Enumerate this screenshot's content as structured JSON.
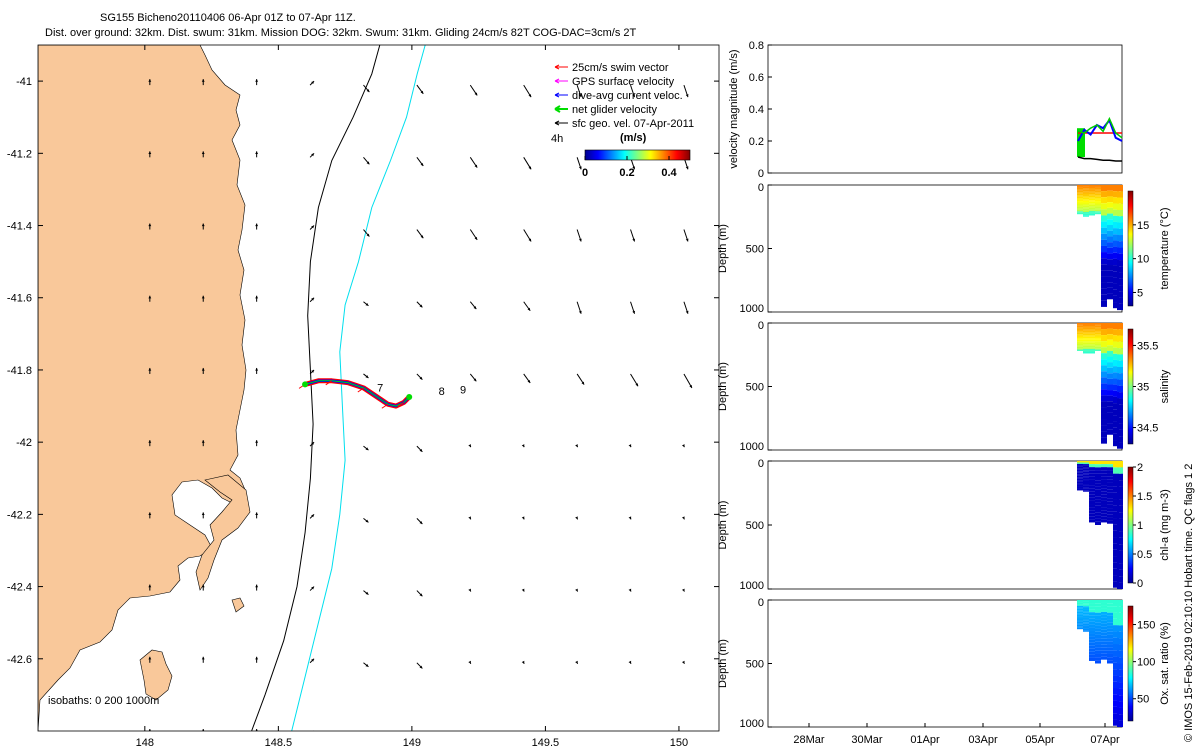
{
  "header": {
    "title": "SG155 Bicheno20110406 06-Apr 01Z to 07-Apr 11Z.",
    "subtitle": "Dist. over ground: 32km. Dist. swum: 31km. Mission DOG: 32km. Swum: 31km. Gliding 24cm/s 82T COG-DAC=3cm/s 2T"
  },
  "credit": "© IMOS 15-Feb-2019 02:10:10 Hobart time. QC flags 1  2",
  "colors": {
    "land": "#f9c89a",
    "cyan": "#00e5ee",
    "track_red": "#ff0000",
    "track_blue": "#0000ff",
    "track_green": "#00ee00",
    "magenta": "#ff00ff"
  },
  "chart_data": [
    {
      "type": "map",
      "xlim": [
        147.6,
        150.15
      ],
      "ylim": [
        -42.8,
        -40.9
      ],
      "x_ticks": [
        "148",
        "148.5",
        "149",
        "149.5",
        "150"
      ],
      "x_tick_values": [
        148,
        148.5,
        149,
        149.5,
        150
      ],
      "y_ticks": [
        "-41",
        "-41.2",
        "-41.4",
        "-41.6",
        "-41.8",
        "-42",
        "-42.2",
        "-42.4",
        "-42.6"
      ],
      "y_tick_values": [
        -41,
        -41.2,
        -41.4,
        -41.6,
        -41.8,
        -42,
        -42.2,
        -42.4,
        -42.6
      ],
      "legend": {
        "position": "top-right",
        "entries": [
          {
            "label": "25cm/s swim vector",
            "color": "#ff0000"
          },
          {
            "label": "GPS surface velocity",
            "color": "#ff00ff"
          },
          {
            "label": "dive-avg current veloc.",
            "color": "#0000ff"
          },
          {
            "label": "net glider velocity",
            "color": "#00dd00"
          },
          {
            "label": "sfc geo. vel. 07-Apr-2011",
            "color": "#000000"
          }
        ]
      },
      "colorbar": {
        "title": "(m/s)",
        "ticks": [
          "0",
          "0.2",
          "0.4"
        ],
        "tick_values": [
          0,
          0.2,
          0.4
        ],
        "range": [
          0,
          0.5
        ]
      },
      "marker_4h": "4h",
      "day_labels": [
        {
          "text": "7",
          "lon": 148.87,
          "lat": -41.86
        },
        {
          "text": "8",
          "lon": 149.1,
          "lat": -41.87
        },
        {
          "text": "9",
          "lon": 149.18,
          "lat": -41.865
        }
      ],
      "isobath_label": "isobaths: 0   200  1000m",
      "track": {
        "lon": [
          148.6,
          148.65,
          148.7,
          148.76,
          148.82,
          148.87,
          148.91,
          148.94,
          148.97,
          148.99
        ],
        "lat": [
          -41.84,
          -41.83,
          -41.83,
          -41.835,
          -41.85,
          -41.875,
          -41.895,
          -41.9,
          -41.89,
          -41.875
        ]
      },
      "isobath_200": {
        "lon": [
          148.88,
          148.85,
          148.78,
          148.7,
          148.65,
          148.62,
          148.61,
          148.62,
          148.63,
          148.62,
          148.6,
          148.57,
          148.52,
          148.45,
          148.4
        ],
        "lat": [
          -40.9,
          -40.98,
          -41.1,
          -41.22,
          -41.35,
          -41.5,
          -41.65,
          -41.8,
          -41.95,
          -42.1,
          -42.25,
          -42.4,
          -42.55,
          -42.7,
          -42.8
        ]
      },
      "isobath_1000": {
        "lon": [
          149.05,
          149.02,
          148.98,
          148.92,
          148.85,
          148.8,
          148.75,
          148.73,
          148.74,
          148.75,
          148.73,
          148.7,
          148.65,
          148.6,
          148.55
        ],
        "lat": [
          -40.9,
          -40.98,
          -41.1,
          -41.22,
          -41.35,
          -41.5,
          -41.62,
          -41.75,
          -41.9,
          -42.05,
          -42.2,
          -42.35,
          -42.5,
          -42.65,
          -42.8
        ]
      }
    },
    {
      "type": "line",
      "ylabel": "velocity magnitude (m/s)",
      "ylim": [
        0,
        0.8
      ],
      "y_ticks": [
        "0",
        "0.2",
        "0.4",
        "0.6",
        "0.8"
      ],
      "y_tick_values": [
        0,
        0.2,
        0.4,
        0.6,
        0.8
      ],
      "series": [
        {
          "color": "#ff0000",
          "values": [
            0.25,
            0.25,
            0.25,
            0.25,
            0.25,
            0.25,
            0.25,
            0.25
          ]
        },
        {
          "color": "#0000ff",
          "values": [
            0.2,
            0.27,
            0.24,
            0.3,
            0.28,
            0.33,
            0.22,
            0.2
          ]
        },
        {
          "color": "#00cc00",
          "values": [
            0.26,
            0.25,
            0.28,
            0.3,
            0.26,
            0.34,
            0.25,
            0.22
          ]
        },
        {
          "color": "#000000",
          "values": [
            0.1,
            0.09,
            0.09,
            0.085,
            0.08,
            0.08,
            0.075,
            0.075
          ]
        }
      ]
    },
    {
      "type": "heatmap",
      "ylabel": "Depth (m)",
      "y_ticks": [
        "0",
        "500",
        "1000"
      ],
      "y_tick_values": [
        0,
        500,
        1000
      ],
      "colorbar_label": "temperature (°C)",
      "colorbar_ticks": [
        "5",
        "10",
        "15"
      ],
      "colorbar_tick_values": [
        5,
        10,
        15
      ],
      "colorbar_range": [
        3,
        20
      ],
      "profile_depths": [
        230,
        250,
        240,
        230,
        960,
        900,
        970,
        985
      ]
    },
    {
      "type": "heatmap",
      "ylabel": "Depth (m)",
      "y_ticks": [
        "0",
        "500",
        "1000"
      ],
      "y_tick_values": [
        0,
        500,
        1000
      ],
      "colorbar_label": "salinity",
      "colorbar_ticks": [
        "34.5",
        "35",
        "35.5"
      ],
      "colorbar_tick_values": [
        34.5,
        35,
        35.5
      ],
      "colorbar_range": [
        34.3,
        35.7
      ],
      "profile_depths": [
        220,
        240,
        240,
        220,
        950,
        880,
        970,
        990
      ]
    },
    {
      "type": "heatmap",
      "ylabel": "Depth (m)",
      "y_ticks": [
        "0",
        "500",
        "1000"
      ],
      "y_tick_values": [
        0,
        500,
        1000
      ],
      "colorbar_label": "chl-a (mg m-3)",
      "colorbar_ticks": [
        "0",
        "0.5",
        "1",
        "1.5",
        "2"
      ],
      "colorbar_tick_values": [
        0,
        0.5,
        1,
        1.5,
        2
      ],
      "colorbar_range": [
        0,
        2
      ],
      "profile_depths": [
        230,
        240,
        480,
        500,
        480,
        490,
        990,
        1000
      ]
    },
    {
      "type": "heatmap",
      "ylabel": "Depth (m)",
      "y_ticks": [
        "0",
        "500",
        "1000"
      ],
      "y_tick_values": [
        0,
        500,
        1000
      ],
      "colorbar_label": "Ox. sat. ratio (%)",
      "colorbar_ticks": [
        "50",
        "100",
        "150"
      ],
      "colorbar_tick_values": [
        50,
        100,
        150
      ],
      "colorbar_range": [
        20,
        175
      ],
      "profile_depths": [
        230,
        250,
        480,
        500,
        470,
        500,
        990,
        1000
      ],
      "x_ticks": [
        "28Mar",
        "30Mar",
        "01Apr",
        "03Apr",
        "05Apr",
        "07Apr"
      ]
    }
  ]
}
